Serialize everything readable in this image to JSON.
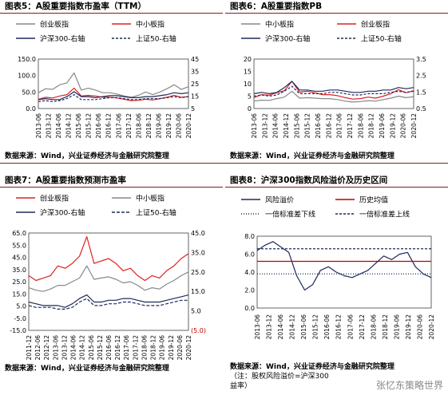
{
  "panels": [
    {
      "id": "p5",
      "title": "图表5：A股重要指数市盈率（TTM）",
      "source": "数据来源：Wind，兴业证券经济与金融研究院整理",
      "chart_data": {
        "type": "line",
        "x_ticks": [
          "2013-06",
          "2013-12",
          "2014-06",
          "2014-12",
          "2015-06",
          "2015-12",
          "2016-06",
          "2016-12",
          "2017-06",
          "2017-12",
          "2018-06",
          "2018-12",
          "2019-06",
          "2019-12",
          "2020-06",
          "2020-12"
        ],
        "y_left_ticks": [
          "150.0",
          "100.0",
          "50.0",
          "0.0"
        ],
        "ylim_left": [
          0,
          150
        ],
        "y_right_ticks": [
          "45",
          "35",
          "25",
          "15",
          "5"
        ],
        "ylim_right": [
          0,
          50
        ],
        "series": [
          {
            "name": "创业板指",
            "axis": "left",
            "color": "#888888",
            "dash": "",
            "values": [
              48,
              60,
              58,
              72,
              78,
              108,
              56,
              62,
              56,
              48,
              48,
              44,
              38,
              34,
              40,
              50,
              42,
              50,
              60,
              72,
              58,
              66
            ]
          },
          {
            "name": "中小板指",
            "axis": "left",
            "color": "#e02020",
            "dash": "",
            "values": [
              28,
              34,
              32,
              38,
              42,
              62,
              38,
              40,
              38,
              34,
              34,
              32,
              28,
              24,
              25,
              28,
              26,
              30,
              34,
              40,
              34,
              36
            ]
          },
          {
            "name": "沪深300-右轴",
            "axis": "right",
            "color": "#1f2a5c",
            "dash": "",
            "values": [
              9,
              10,
              9,
              9,
              12,
              17,
              12,
              12,
              11,
              12,
              13,
              13,
              12,
              11,
              11,
              12,
              12,
              13,
              14,
              16,
              15,
              16
            ]
          },
          {
            "name": "上证50-右轴",
            "axis": "right",
            "color": "#1f2a5c",
            "dash": "3,2",
            "values": [
              7,
              8,
              7,
              8,
              10,
              14,
              9,
              9,
              9,
              10,
              11,
              11,
              10,
              9,
              9,
              10,
              10,
              10,
              11,
              12,
              11,
              12
            ]
          }
        ]
      }
    },
    {
      "id": "p6",
      "title": "图表6：A股重要指数PB",
      "source": "数据来源：Wind，兴业证券经济与金融研究院整理",
      "chart_data": {
        "type": "line",
        "x_ticks": [
          "2013-06",
          "2013-12",
          "2014-06",
          "2014-12",
          "2015-06",
          "2015-12",
          "2016-06",
          "2016-12",
          "2017-06",
          "2017-12",
          "2018-06",
          "2018-12",
          "2019-06",
          "2019-12",
          "2020-06",
          "2020-12"
        ],
        "y_left_ticks": [
          "20",
          "15",
          "10",
          "5",
          "0"
        ],
        "ylim_left": [
          0,
          20
        ],
        "y_right_ticks": [
          "3.5",
          "2.5",
          "1.5",
          "0.5"
        ],
        "ylim_right": [
          0,
          4
        ],
        "series": [
          {
            "name": "中小板指",
            "axis": "left",
            "color": "#888888",
            "dash": "",
            "values": [
              3,
              3.4,
              3.3,
              4,
              4.6,
              7,
              4.2,
              4.4,
              4.2,
              4,
              4,
              3.6,
              3,
              2.6,
              2.8,
              3.2,
              3,
              3.6,
              4.2,
              5,
              4.4,
              4.8
            ]
          },
          {
            "name": "创业板指",
            "axis": "left",
            "color": "#e02020",
            "dash": "",
            "values": [
              4.4,
              5.6,
              5.4,
              6.4,
              7.2,
              11,
              6.6,
              7,
              6.4,
              5.6,
              5.6,
              5.2,
              4.4,
              3.8,
              4,
              4.6,
              4.2,
              5,
              6,
              7.6,
              6.4,
              7.2
            ]
          },
          {
            "name": "沪深300-右轴",
            "axis": "right",
            "color": "#1f2a5c",
            "dash": "",
            "values": [
              1.2,
              1.3,
              1.2,
              1.3,
              1.7,
              2.2,
              1.5,
              1.5,
              1.4,
              1.4,
              1.5,
              1.5,
              1.4,
              1.3,
              1.3,
              1.4,
              1.4,
              1.5,
              1.5,
              1.7,
              1.6,
              1.7
            ]
          },
          {
            "name": "上证50-右轴",
            "axis": "right",
            "color": "#1f2a5c",
            "dash": "3,2",
            "values": [
              1,
              1.1,
              1,
              1.1,
              1.4,
              1.8,
              1.2,
              1.2,
              1.2,
              1.2,
              1.3,
              1.3,
              1.2,
              1.1,
              1.1,
              1.2,
              1.2,
              1.2,
              1.3,
              1.4,
              1.3,
              1.4
            ]
          }
        ]
      }
    },
    {
      "id": "p7",
      "title": "图表7：A股重要指数预测市盈率",
      "source": "数据来源：Wind，兴业证券经济与金融研究院整理",
      "chart_data": {
        "type": "line",
        "x_ticks": [
          "2011-12",
          "2012-06",
          "2012-12",
          "2013-06",
          "2013-12",
          "2014-06",
          "2014-12",
          "2015-06",
          "2015-12",
          "2016-06",
          "2016-12",
          "2017-06",
          "2017-12",
          "2018-06",
          "2018-12",
          "2019-06",
          "2019-12",
          "2020-06",
          "2020-12"
        ],
        "y_left_ticks": [
          "65.0",
          "55.0",
          "45.0",
          "35.0",
          "25.0",
          "15.0",
          "5.0",
          "-5.0",
          "-15.0"
        ],
        "ylim_left": [
          -15,
          65
        ],
        "y_right_ticks": [
          "45.0",
          "35.0",
          "25.0",
          "15.0",
          "5.0",
          "(5.0)"
        ],
        "ylim_right": [
          -5,
          50
        ],
        "series": [
          {
            "name": "创业板指",
            "axis": "left",
            "color": "#e02020",
            "dash": "",
            "values": [
              30,
              26,
              28,
              30,
              38,
              36,
              40,
              46,
              62,
              40,
              42,
              44,
              40,
              34,
              36,
              30,
              26,
              30,
              28,
              34,
              38,
              44,
              48
            ]
          },
          {
            "name": "中小板指",
            "axis": "left",
            "color": "#888888",
            "dash": "",
            "values": [
              20,
              18,
              17,
              19,
              22,
              22,
              25,
              28,
              38,
              27,
              28,
              29,
              27,
              24,
              25,
              22,
              18,
              20,
              19,
              23,
              26,
              30,
              33
            ]
          },
          {
            "name": "沪深300-右轴",
            "axis": "right",
            "color": "#1f2a5c",
            "dash": "",
            "values": [
              11,
              10,
              9,
              9,
              9,
              8,
              10,
              13,
              15,
              11,
              11,
              12,
              12,
              13,
              13,
              12,
              11,
              11,
              11,
              12,
              13,
              14,
              15
            ]
          },
          {
            "name": "上证50-右轴",
            "axis": "right",
            "color": "#1f2a5c",
            "dash": "4,2",
            "values": [
              9,
              8,
              8,
              8,
              7,
              7,
              8,
              11,
              13,
              9,
              9,
              10,
              10,
              11,
              11,
              10,
              9,
              9,
              9,
              10,
              11,
              12,
              12
            ]
          }
        ]
      }
    },
    {
      "id": "p8",
      "title": "图表8：沪深300指数风险溢价及历史区间",
      "source": "数据来源：Wind，兴业证券经济与金融研究院整理",
      "note_line1": "（注：股权风险溢价=沪深300",
      "note_line2": "益率）",
      "watermark": "张忆东策略世界",
      "chart_data": {
        "type": "line",
        "x_ticks": [
          "2013-06",
          "2013-12",
          "2014-06",
          "2014-12",
          "2015-06",
          "2015-12",
          "2016-06",
          "2016-12",
          "2017-06",
          "2017-12",
          "2018-06",
          "2018-12",
          "2019-06",
          "2019-12",
          "2020-06",
          "2020-12"
        ],
        "y_left_ticks": [
          "8.0",
          "6.0",
          "4.0",
          "2.0",
          "0.0"
        ],
        "ylim_left": [
          0,
          8
        ],
        "series": [
          {
            "name": "风险溢价",
            "color": "#1f2a5c",
            "dash": "",
            "values": [
              6.4,
              7,
              7.4,
              6.8,
              6.2,
              3.6,
              2,
              2.6,
              4.2,
              4.6,
              4,
              3.6,
              3.4,
              3.8,
              4.2,
              5,
              5.8,
              5.4,
              6,
              6.2,
              4.6,
              3.8,
              3.4
            ]
          },
          {
            "name": "历史均值",
            "color": "#c00000",
            "dash": "",
            "values": [
              5.2
            ]
          },
          {
            "name": "一倍标准差下线",
            "color": "#1f2a5c",
            "dash": "1,2",
            "values": [
              3.8
            ]
          },
          {
            "name": "一倍标准差上线",
            "color": "#1f2a5c",
            "dash": "3,2",
            "values": [
              6.6
            ]
          }
        ]
      }
    }
  ]
}
